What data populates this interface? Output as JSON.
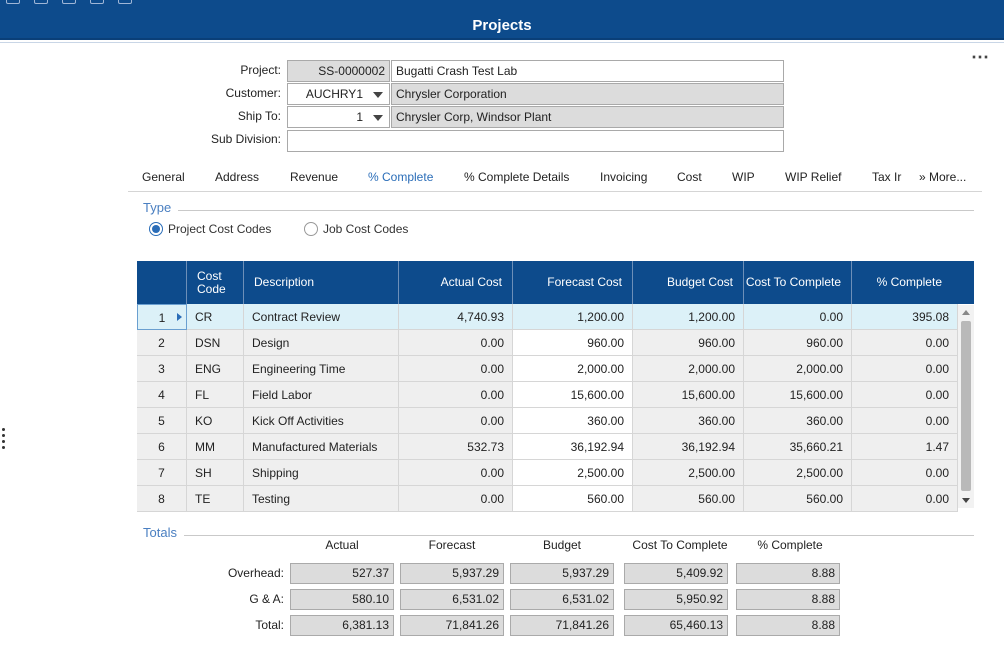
{
  "header": {
    "title": "Projects"
  },
  "form": {
    "project_label": "Project:",
    "project_id": "SS-0000002",
    "project_name": "Bugatti Crash Test Lab",
    "customer_label": "Customer:",
    "customer_id": "AUCHRY1",
    "customer_name": "Chrysler Corporation",
    "shipto_label": "Ship To:",
    "shipto_id": "1",
    "shipto_name": "Chrysler Corp, Windsor Plant",
    "subdivision_label": "Sub Division:",
    "subdivision_value": ""
  },
  "tabs": [
    "General",
    "Address",
    "Revenue",
    "% Complete",
    "% Complete Details",
    "Invoicing",
    "Cost",
    "WIP",
    "WIP Relief",
    "Tax Ir",
    "» More..."
  ],
  "active_tab": "% Complete",
  "type_section": {
    "title": "Type",
    "options": [
      "Project Cost Codes",
      "Job Cost Codes"
    ],
    "selected": "Project Cost Codes"
  },
  "grid": {
    "headers": [
      "",
      "Cost Code",
      "Description",
      "Actual Cost",
      "Forecast Cost",
      "Budget Cost",
      "Cost To Complete",
      "% Complete"
    ],
    "rows": [
      [
        "1",
        "CR",
        "Contract Review",
        "4,740.93",
        "1,200.00",
        "1,200.00",
        "0.00",
        "395.08"
      ],
      [
        "2",
        "DSN",
        "Design",
        "0.00",
        "960.00",
        "960.00",
        "960.00",
        "0.00"
      ],
      [
        "3",
        "ENG",
        "Engineering Time",
        "0.00",
        "2,000.00",
        "2,000.00",
        "2,000.00",
        "0.00"
      ],
      [
        "4",
        "FL",
        "Field Labor",
        "0.00",
        "15,600.00",
        "15,600.00",
        "15,600.00",
        "0.00"
      ],
      [
        "5",
        "KO",
        "Kick Off Activities",
        "0.00",
        "360.00",
        "360.00",
        "360.00",
        "0.00"
      ],
      [
        "6",
        "MM",
        "Manufactured Materials",
        "532.73",
        "36,192.94",
        "36,192.94",
        "35,660.21",
        "1.47"
      ],
      [
        "7",
        "SH",
        "Shipping",
        "0.00",
        "2,500.00",
        "2,500.00",
        "2,500.00",
        "0.00"
      ],
      [
        "8",
        "TE",
        "Testing",
        "0.00",
        "560.00",
        "560.00",
        "560.00",
        "0.00"
      ]
    ]
  },
  "totals": {
    "title": "Totals",
    "headers": [
      "Actual",
      "Forecast",
      "Budget",
      "Cost To Complete",
      "% Complete"
    ],
    "rows": [
      {
        "label": "Overhead:",
        "values": [
          "527.37",
          "5,937.29",
          "5,937.29",
          "5,409.92",
          "8.88"
        ]
      },
      {
        "label": "G & A:",
        "values": [
          "580.10",
          "6,531.02",
          "6,531.02",
          "5,950.92",
          "8.88"
        ]
      },
      {
        "label": "Total:",
        "values": [
          "6,381.13",
          "71,841.26",
          "71,841.26",
          "65,460.13",
          "8.88"
        ]
      }
    ]
  },
  "colors": {
    "header_bg": "#0d4b8c",
    "accent": "#2a6db8",
    "selected_row": "#dcf1f8"
  },
  "icons": [
    "more-options-icon",
    "dropdown-caret-icon",
    "row-pointer-icon",
    "scroll-up-icon",
    "scroll-down-icon",
    "drag-handle-icon"
  ]
}
